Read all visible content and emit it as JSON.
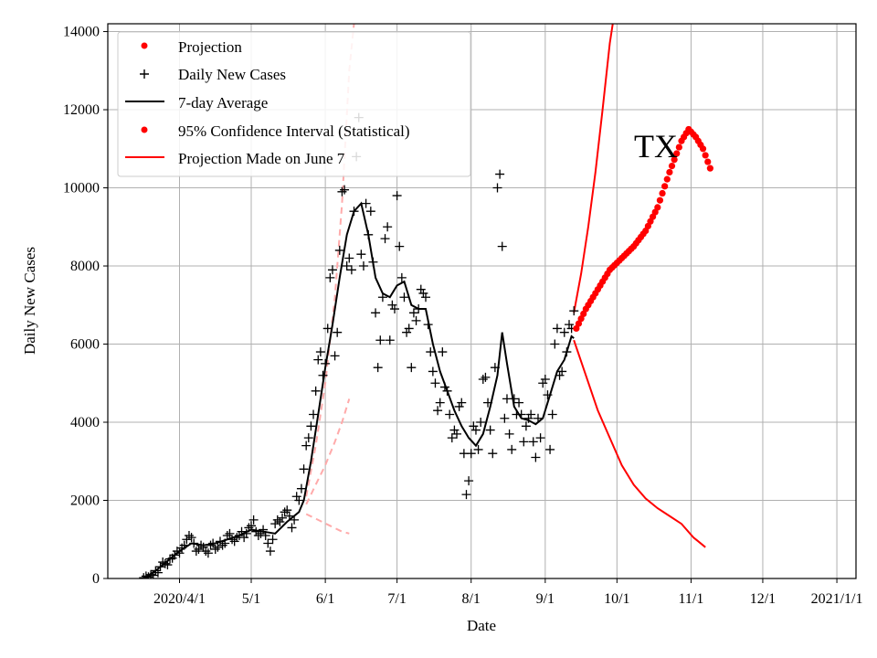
{
  "chart_data": {
    "type": "line",
    "title": "",
    "xlabel": "Date",
    "ylabel": "Daily New Cases",
    "xlim_days": [
      -30,
      283
    ],
    "ylim": [
      0,
      14200
    ],
    "grid": true,
    "legend_position": "top-left",
    "annotation": "TX",
    "x_ticks": [
      {
        "day": 0,
        "label": "2020/4/1"
      },
      {
        "day": 30,
        "label": "5/1"
      },
      {
        "day": 61,
        "label": "6/1"
      },
      {
        "day": 91,
        "label": "7/1"
      },
      {
        "day": 122,
        "label": "8/1"
      },
      {
        "day": 153,
        "label": "9/1"
      },
      {
        "day": 183,
        "label": "10/1"
      },
      {
        "day": 214,
        "label": "11/1"
      },
      {
        "day": 244,
        "label": "12/1"
      },
      {
        "day": 275,
        "label": "2021/1/1"
      }
    ],
    "y_ticks": [
      0,
      2000,
      4000,
      6000,
      8000,
      10000,
      12000,
      14000
    ],
    "legend": [
      {
        "label": "Projection",
        "style": "red-dot"
      },
      {
        "label": "Daily New Cases",
        "style": "black-plus"
      },
      {
        "label": "7-day Average",
        "style": "black-line"
      },
      {
        "label": "95% Confidence Interval (Statistical)",
        "style": "red-dot"
      },
      {
        "label": "Projection Made on June 7",
        "style": "red-line"
      }
    ],
    "series": [
      {
        "name": "Daily New Cases",
        "marker": "plus",
        "color": "#000000",
        "points": [
          [
            -15,
            20
          ],
          [
            -14,
            60
          ],
          [
            -13,
            40
          ],
          [
            -12,
            100
          ],
          [
            -11,
            80
          ],
          [
            -10,
            200
          ],
          [
            -9,
            150
          ],
          [
            -8,
            300
          ],
          [
            -7,
            420
          ],
          [
            -6,
            380
          ],
          [
            -5,
            350
          ],
          [
            -4,
            500
          ],
          [
            -3,
            520
          ],
          [
            -2,
            600
          ],
          [
            -1,
            700
          ],
          [
            0,
            650
          ],
          [
            1,
            780
          ],
          [
            2,
            850
          ],
          [
            3,
            1000
          ],
          [
            4,
            1100
          ],
          [
            5,
            1050
          ],
          [
            6,
            900
          ],
          [
            7,
            700
          ],
          [
            8,
            750
          ],
          [
            9,
            850
          ],
          [
            10,
            800
          ],
          [
            11,
            700
          ],
          [
            12,
            650
          ],
          [
            13,
            850
          ],
          [
            14,
            900
          ],
          [
            15,
            750
          ],
          [
            16,
            800
          ],
          [
            17,
            950
          ],
          [
            18,
            850
          ],
          [
            19,
            900
          ],
          [
            20,
            1100
          ],
          [
            21,
            1150
          ],
          [
            22,
            1000
          ],
          [
            23,
            950
          ],
          [
            24,
            1050
          ],
          [
            25,
            1100
          ],
          [
            26,
            1200
          ],
          [
            27,
            1050
          ],
          [
            28,
            1150
          ],
          [
            29,
            1300
          ],
          [
            30,
            1350
          ],
          [
            31,
            1500
          ],
          [
            32,
            1200
          ],
          [
            33,
            1100
          ],
          [
            34,
            1150
          ],
          [
            35,
            1250
          ],
          [
            36,
            1100
          ],
          [
            37,
            900
          ],
          [
            38,
            700
          ],
          [
            39,
            1000
          ],
          [
            40,
            1400
          ],
          [
            41,
            1500
          ],
          [
            42,
            1450
          ],
          [
            43,
            1550
          ],
          [
            44,
            1700
          ],
          [
            45,
            1750
          ],
          [
            46,
            1600
          ],
          [
            47,
            1300
          ],
          [
            48,
            1500
          ],
          [
            49,
            2100
          ],
          [
            50,
            2000
          ],
          [
            51,
            2300
          ],
          [
            52,
            2800
          ],
          [
            53,
            3400
          ],
          [
            54,
            3600
          ],
          [
            55,
            3900
          ],
          [
            56,
            4200
          ],
          [
            57,
            4800
          ],
          [
            58,
            5600
          ],
          [
            59,
            5800
          ],
          [
            60,
            5200
          ],
          [
            61,
            5500
          ],
          [
            62,
            6400
          ],
          [
            63,
            7700
          ],
          [
            64,
            7900
          ],
          [
            65,
            5700
          ],
          [
            66,
            6300
          ],
          [
            67,
            8400
          ],
          [
            68,
            9900
          ],
          [
            69,
            9950
          ],
          [
            70,
            8000
          ],
          [
            71,
            8200
          ],
          [
            72,
            7900
          ],
          [
            73,
            9400
          ],
          [
            74,
            10800
          ],
          [
            75,
            11800
          ],
          [
            76,
            8300
          ],
          [
            77,
            8000
          ],
          [
            78,
            9600
          ],
          [
            79,
            8800
          ],
          [
            80,
            9400
          ],
          [
            81,
            8100
          ],
          [
            82,
            6800
          ],
          [
            83,
            5400
          ],
          [
            84,
            6100
          ],
          [
            85,
            7200
          ],
          [
            86,
            8700
          ],
          [
            87,
            9000
          ],
          [
            88,
            6100
          ],
          [
            89,
            7000
          ],
          [
            90,
            6900
          ],
          [
            91,
            9800
          ],
          [
            92,
            8500
          ],
          [
            93,
            7700
          ],
          [
            94,
            7200
          ],
          [
            95,
            6300
          ],
          [
            96,
            6400
          ],
          [
            97,
            5400
          ],
          [
            98,
            6800
          ],
          [
            99,
            6600
          ],
          [
            100,
            6900
          ],
          [
            101,
            7400
          ],
          [
            102,
            7300
          ],
          [
            103,
            7200
          ],
          [
            104,
            6500
          ],
          [
            105,
            5800
          ],
          [
            106,
            5300
          ],
          [
            107,
            5000
          ],
          [
            108,
            4300
          ],
          [
            109,
            4500
          ],
          [
            110,
            5800
          ],
          [
            111,
            4900
          ],
          [
            112,
            4800
          ],
          [
            113,
            4200
          ],
          [
            114,
            3600
          ],
          [
            115,
            3800
          ],
          [
            116,
            3700
          ],
          [
            117,
            4400
          ],
          [
            118,
            4500
          ],
          [
            119,
            3200
          ],
          [
            120,
            2150
          ],
          [
            121,
            2500
          ],
          [
            122,
            3200
          ],
          [
            123,
            3900
          ],
          [
            124,
            3800
          ],
          [
            125,
            3300
          ],
          [
            126,
            4000
          ],
          [
            127,
            5100
          ],
          [
            128,
            5150
          ],
          [
            129,
            4500
          ],
          [
            130,
            3800
          ],
          [
            131,
            3200
          ],
          [
            132,
            5400
          ],
          [
            133,
            10000
          ],
          [
            134,
            10350
          ],
          [
            135,
            8500
          ],
          [
            136,
            4100
          ],
          [
            137,
            4600
          ],
          [
            138,
            3700
          ],
          [
            139,
            3300
          ],
          [
            140,
            4600
          ],
          [
            141,
            4200
          ],
          [
            142,
            4500
          ],
          [
            143,
            4200
          ],
          [
            144,
            3500
          ],
          [
            145,
            3900
          ],
          [
            146,
            4100
          ],
          [
            147,
            4200
          ],
          [
            148,
            3500
          ],
          [
            149,
            3100
          ],
          [
            150,
            4100
          ],
          [
            151,
            3600
          ],
          [
            152,
            5000
          ],
          [
            153,
            5100
          ],
          [
            154,
            4700
          ],
          [
            155,
            3300
          ],
          [
            156,
            4200
          ],
          [
            157,
            6000
          ],
          [
            158,
            6400
          ],
          [
            159,
            5200
          ],
          [
            160,
            5300
          ],
          [
            161,
            6300
          ],
          [
            162,
            5800
          ],
          [
            163,
            6500
          ],
          [
            164,
            6400
          ],
          [
            165,
            6850
          ]
        ]
      },
      {
        "name": "7-day Average",
        "color": "#000000",
        "points": [
          [
            -15,
            0
          ],
          [
            -10,
            200
          ],
          [
            -5,
            450
          ],
          [
            0,
            700
          ],
          [
            5,
            900
          ],
          [
            10,
            850
          ],
          [
            15,
            900
          ],
          [
            20,
            1000
          ],
          [
            25,
            1100
          ],
          [
            30,
            1250
          ],
          [
            35,
            1200
          ],
          [
            40,
            1150
          ],
          [
            45,
            1450
          ],
          [
            50,
            1700
          ],
          [
            52,
            2000
          ],
          [
            55,
            3000
          ],
          [
            58,
            4200
          ],
          [
            61,
            5400
          ],
          [
            64,
            6500
          ],
          [
            67,
            7700
          ],
          [
            70,
            8800
          ],
          [
            73,
            9400
          ],
          [
            76,
            9600
          ],
          [
            79,
            8800
          ],
          [
            82,
            7700
          ],
          [
            85,
            7300
          ],
          [
            88,
            7200
          ],
          [
            91,
            7500
          ],
          [
            94,
            7600
          ],
          [
            97,
            7000
          ],
          [
            100,
            6900
          ],
          [
            103,
            6900
          ],
          [
            106,
            6000
          ],
          [
            109,
            5300
          ],
          [
            112,
            4800
          ],
          [
            115,
            4300
          ],
          [
            118,
            3900
          ],
          [
            121,
            3600
          ],
          [
            124,
            3400
          ],
          [
            127,
            3700
          ],
          [
            130,
            4400
          ],
          [
            133,
            5200
          ],
          [
            135,
            6300
          ],
          [
            137,
            5500
          ],
          [
            140,
            4400
          ],
          [
            143,
            4100
          ],
          [
            146,
            4050
          ],
          [
            149,
            3950
          ],
          [
            152,
            4100
          ],
          [
            155,
            4700
          ],
          [
            158,
            5300
          ],
          [
            161,
            5600
          ],
          [
            164,
            6200
          ],
          [
            165,
            6150
          ]
        ]
      },
      {
        "name": "Projection",
        "marker": "dot",
        "color": "#ff0000",
        "points": [
          [
            166,
            6400
          ],
          [
            170,
            6900
          ],
          [
            175,
            7400
          ],
          [
            180,
            7900
          ],
          [
            185,
            8200
          ],
          [
            190,
            8500
          ],
          [
            195,
            8900
          ],
          [
            200,
            9500
          ],
          [
            205,
            10400
          ],
          [
            210,
            11200
          ],
          [
            213,
            11500
          ],
          [
            216,
            11300
          ],
          [
            219,
            11000
          ],
          [
            222,
            10500
          ]
        ]
      },
      {
        "name": "95% Confidence Interval (Statistical)",
        "color": "#ff0000",
        "upper_points": [
          [
            165,
            6800
          ],
          [
            168,
            7800
          ],
          [
            171,
            9000
          ],
          [
            174,
            10400
          ],
          [
            177,
            12000
          ],
          [
            180,
            13700
          ],
          [
            182,
            14500
          ]
        ],
        "lower_points": [
          [
            165,
            6100
          ],
          [
            170,
            5200
          ],
          [
            175,
            4300
          ],
          [
            180,
            3600
          ],
          [
            185,
            2900
          ],
          [
            190,
            2400
          ],
          [
            195,
            2050
          ],
          [
            200,
            1800
          ],
          [
            205,
            1600
          ],
          [
            210,
            1400
          ],
          [
            215,
            1050
          ],
          [
            220,
            800
          ]
        ]
      },
      {
        "name": "Projection Made on June 7",
        "color": "#ffaaaa",
        "dashed": true,
        "center_points": [
          [
            53,
            1900
          ],
          [
            57,
            2400
          ],
          [
            61,
            2900
          ],
          [
            65,
            3500
          ],
          [
            68,
            4000
          ],
          [
            71,
            4600
          ]
        ],
        "upper_points": [
          [
            53,
            2100
          ],
          [
            57,
            3400
          ],
          [
            61,
            5000
          ],
          [
            65,
            7200
          ],
          [
            68,
            9600
          ],
          [
            71,
            13000
          ],
          [
            73,
            14200
          ]
        ],
        "lower_points": [
          [
            53,
            1650
          ],
          [
            58,
            1500
          ],
          [
            63,
            1350
          ],
          [
            68,
            1200
          ],
          [
            71,
            1150
          ]
        ]
      }
    ]
  }
}
